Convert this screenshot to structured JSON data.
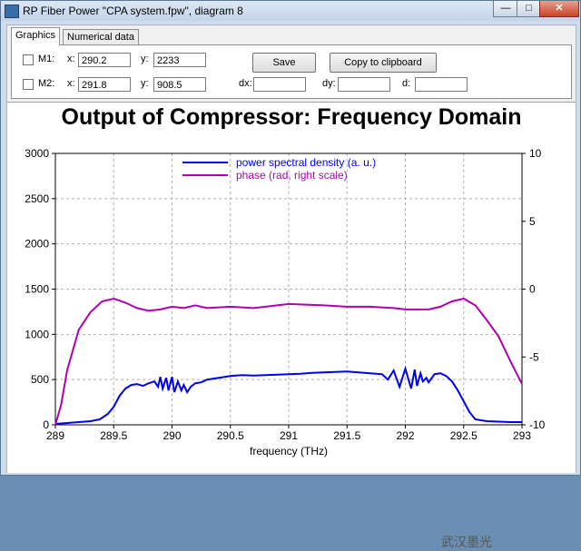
{
  "window": {
    "title": "RP Fiber Power \"CPA system.fpw\", diagram 8",
    "buttons": [
      "—",
      "□",
      "✕"
    ]
  },
  "tabs": [
    {
      "label": "Graphics",
      "active": true
    },
    {
      "label": "Numerical data",
      "active": false
    }
  ],
  "markers": {
    "m1": {
      "label": "M1:",
      "x_label": "x:",
      "x": "290.2",
      "y_label": "y:",
      "y": "2233"
    },
    "m2": {
      "label": "M2:",
      "x_label": "x:",
      "x": "291.8",
      "y_label": "y:",
      "y": "908.5"
    },
    "dx_label": "dx:",
    "dx": "",
    "dy_label": "dy:",
    "dy": "",
    "d_label": "d:",
    "d": ""
  },
  "buttons": {
    "save": "Save",
    "copy": "Copy to clipboard"
  },
  "watermark": "武汉墨光",
  "chart_data": {
    "type": "line",
    "title": "Output of Compressor: Frequency Domain",
    "xlabel": "frequency (THz)",
    "ylabel": "",
    "xlim": [
      289,
      293
    ],
    "ylim": [
      0,
      3000
    ],
    "y2lim": [
      -10,
      10
    ],
    "x_ticks": [
      "289",
      "289.5",
      "290",
      "290.5",
      "291",
      "291.5",
      "292",
      "292.5",
      "293"
    ],
    "y_ticks": [
      "0",
      "500",
      "1000",
      "1500",
      "2000",
      "2500",
      "3000"
    ],
    "y2_ticks": [
      "-10",
      "-5",
      "0",
      "5",
      "10"
    ],
    "grid": true,
    "legend_placement": "top-center",
    "colors": {
      "psd": "#0000ee",
      "phase": "#b000b0"
    },
    "series": [
      {
        "name": "power spectral density (a. u.)",
        "axis": "left",
        "x": [
          289,
          289.1,
          289.2,
          289.3,
          289.38,
          289.45,
          289.5,
          289.55,
          289.6,
          289.65,
          289.7,
          289.75,
          289.8,
          289.85,
          289.88,
          289.9,
          289.92,
          289.95,
          289.97,
          290,
          290.02,
          290.05,
          290.08,
          290.1,
          290.13,
          290.16,
          290.2,
          290.25,
          290.3,
          290.4,
          290.5,
          290.6,
          290.7,
          290.8,
          290.9,
          291,
          291.1,
          291.2,
          291.3,
          291.4,
          291.5,
          291.6,
          291.7,
          291.8,
          291.85,
          291.9,
          291.95,
          292,
          292.05,
          292.08,
          292.1,
          292.13,
          292.15,
          292.18,
          292.2,
          292.25,
          292.3,
          292.35,
          292.4,
          292.45,
          292.5,
          292.55,
          292.6,
          292.7,
          292.8,
          292.9,
          293
        ],
        "values": [
          10,
          20,
          30,
          40,
          60,
          120,
          200,
          320,
          400,
          440,
          450,
          430,
          460,
          480,
          420,
          530,
          400,
          520,
          380,
          530,
          360,
          480,
          380,
          440,
          360,
          420,
          460,
          470,
          500,
          520,
          540,
          550,
          545,
          550,
          555,
          560,
          565,
          575,
          580,
          585,
          590,
          580,
          570,
          560,
          500,
          600,
          420,
          620,
          400,
          610,
          430,
          570,
          480,
          520,
          470,
          560,
          570,
          540,
          480,
          380,
          260,
          140,
          60,
          40,
          35,
          30,
          30
        ]
      },
      {
        "name": "phase (rad, right scale)",
        "axis": "right",
        "x": [
          289,
          289.05,
          289.1,
          289.2,
          289.3,
          289.4,
          289.5,
          289.6,
          289.7,
          289.8,
          289.9,
          290,
          290.1,
          290.2,
          290.3,
          290.5,
          290.7,
          291,
          291.3,
          291.5,
          291.7,
          291.9,
          292,
          292.2,
          292.3,
          292.4,
          292.5,
          292.6,
          292.7,
          292.8,
          292.9,
          293
        ],
        "values": [
          -10,
          -8.5,
          -6,
          -3,
          -1.7,
          -0.9,
          -0.7,
          -1.0,
          -1.4,
          -1.6,
          -1.5,
          -1.3,
          -1.4,
          -1.2,
          -1.4,
          -1.3,
          -1.4,
          -1.1,
          -1.2,
          -1.3,
          -1.3,
          -1.4,
          -1.5,
          -1.5,
          -1.3,
          -0.9,
          -0.7,
          -1.2,
          -2.3,
          -3.5,
          -5.3,
          -7
        ]
      }
    ]
  }
}
